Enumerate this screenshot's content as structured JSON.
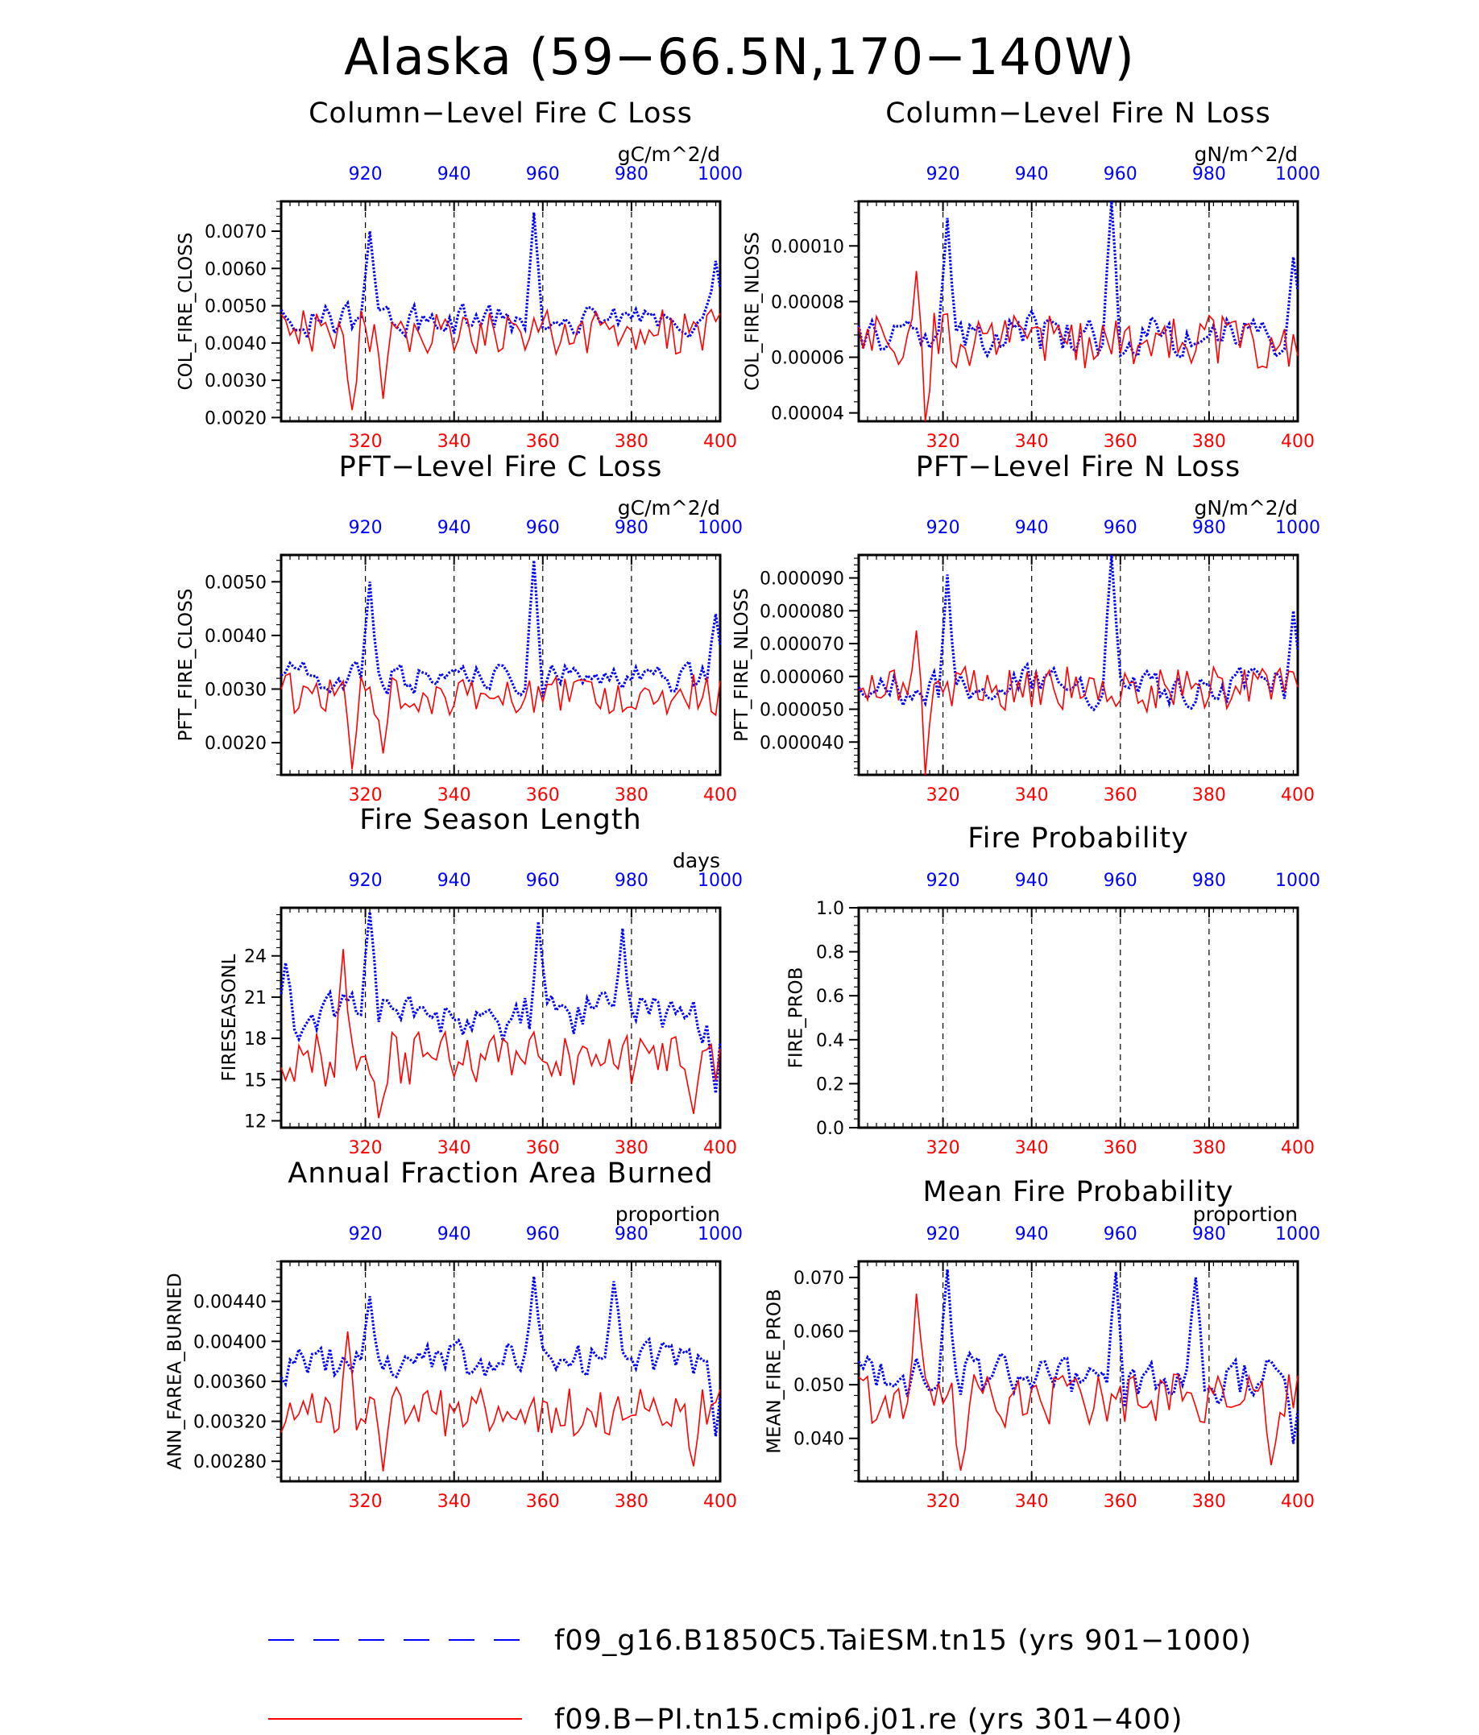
{
  "figure": {
    "title": "Alaska (59−66.5N,170−140W)"
  },
  "colors": {
    "series_a": "#0000ff",
    "series_b": "#ff0000",
    "axis": "#000000"
  },
  "legend": [
    {
      "label": "f09_g16.B1850C5.TaiESM.tn15 (yrs 901−1000)",
      "style": "dashed",
      "color": "#0000ff"
    },
    {
      "label": "f09.B−PI.tn15.cmip6.j01.re (yrs 301−400)",
      "style": "solid",
      "color": "#ff0000"
    }
  ],
  "chart_data": [
    {
      "type": "line",
      "title": "Column−Level Fire C Loss",
      "units": "gC/m^2/d",
      "ylabel": "COL_FIRE_CLOSS",
      "ylim": [
        0.0019,
        0.0078
      ],
      "yticks": [
        0.002,
        0.003,
        0.004,
        0.005,
        0.006,
        0.007
      ],
      "ytick_labels": [
        "0.0020",
        "0.0030",
        "0.0040",
        "0.0050",
        "0.0060",
        "0.0070"
      ],
      "xticks_bottom": [
        "320",
        "340",
        "360",
        "380",
        "400"
      ],
      "xticks_top": [
        "920",
        "940",
        "960",
        "980",
        "1000"
      ],
      "x_bottom_range": [
        301,
        400
      ],
      "x_top_range": [
        901,
        1000
      ],
      "grid": "dashed verticals at x ticks",
      "series": [
        {
          "style": "dotted",
          "color": "#0000ff",
          "base": 0.0046,
          "amp": 0.0006,
          "spikes": [
            [
              20,
              0.007
            ],
            [
              57,
              0.0075
            ],
            [
              98,
              0.0062
            ]
          ]
        },
        {
          "style": "solid",
          "color": "#ff0000",
          "base": 0.0043,
          "amp": 0.0006,
          "spikes": [
            [
              16,
              0.0022
            ],
            [
              23,
              0.0025
            ]
          ]
        }
      ]
    },
    {
      "type": "line",
      "title": "Column−Level Fire N Loss",
      "units": "gN/m^2/d",
      "ylabel": "COL_FIRE_NLOSS",
      "ylim": [
        3.7e-05,
        0.000116
      ],
      "yticks": [
        4e-05,
        6e-05,
        8e-05,
        0.0001
      ],
      "ytick_labels": [
        "0.00004",
        "0.00006",
        "0.00008",
        "0.00010"
      ],
      "xticks_bottom": [
        "320",
        "340",
        "360",
        "380",
        "400"
      ],
      "xticks_top": [
        "920",
        "940",
        "960",
        "980",
        "1000"
      ],
      "x_bottom_range": [
        301,
        400
      ],
      "x_top_range": [
        901,
        1000
      ],
      "grid": "dashed verticals at x ticks",
      "series": [
        {
          "style": "dotted",
          "color": "#0000ff",
          "base": 6.8e-05,
          "amp": 1.1e-05,
          "spikes": [
            [
              20,
              0.00011
            ],
            [
              57,
              0.000116
            ],
            [
              98,
              9.6e-05
            ]
          ]
        },
        {
          "style": "solid",
          "color": "#ff0000",
          "base": 6.6e-05,
          "amp": 1e-05,
          "spikes": [
            [
              15,
              3.7e-05
            ],
            [
              13,
              9.1e-05
            ]
          ]
        }
      ]
    },
    {
      "type": "line",
      "title": "PFT−Level Fire C Loss",
      "units": "gC/m^2/d",
      "ylabel": "PFT_FIRE_CLOSS",
      "ylim": [
        0.0014,
        0.0055
      ],
      "yticks": [
        0.002,
        0.003,
        0.004,
        0.005
      ],
      "ytick_labels": [
        "0.0020",
        "0.0030",
        "0.0040",
        "0.0050"
      ],
      "xticks_bottom": [
        "320",
        "340",
        "360",
        "380",
        "400"
      ],
      "xticks_top": [
        "920",
        "940",
        "960",
        "980",
        "1000"
      ],
      "x_bottom_range": [
        301,
        400
      ],
      "x_top_range": [
        901,
        1000
      ],
      "grid": "dashed verticals at x ticks",
      "series": [
        {
          "style": "dotted",
          "color": "#0000ff",
          "base": 0.0032,
          "amp": 0.0004,
          "spikes": [
            [
              20,
              0.005
            ],
            [
              57,
              0.0054
            ],
            [
              98,
              0.0044
            ]
          ]
        },
        {
          "style": "solid",
          "color": "#ff0000",
          "base": 0.0029,
          "amp": 0.0004,
          "spikes": [
            [
              16,
              0.0015
            ],
            [
              23,
              0.0018
            ]
          ]
        }
      ]
    },
    {
      "type": "line",
      "title": "PFT−Level Fire N Loss",
      "units": "gN/m^2/d",
      "ylabel": "PFT_FIRE_NLOSS",
      "ylim": [
        3e-05,
        9.7e-05
      ],
      "yticks": [
        4e-05,
        5e-05,
        6e-05,
        7e-05,
        8e-05,
        9e-05
      ],
      "ytick_labels": [
        "0.000040",
        "0.000050",
        "0.000060",
        "0.000070",
        "0.000080",
        "0.000090"
      ],
      "xticks_bottom": [
        "320",
        "340",
        "360",
        "380",
        "400"
      ],
      "xticks_top": [
        "920",
        "940",
        "960",
        "980",
        "1000"
      ],
      "x_bottom_range": [
        301,
        400
      ],
      "x_top_range": [
        901,
        1000
      ],
      "grid": "dashed verticals at x ticks",
      "series": [
        {
          "style": "dotted",
          "color": "#0000ff",
          "base": 5.7e-05,
          "amp": 8e-06,
          "spikes": [
            [
              20,
              9.1e-05
            ],
            [
              57,
              9.7e-05
            ],
            [
              98,
              8e-05
            ]
          ]
        },
        {
          "style": "solid",
          "color": "#ff0000",
          "base": 5.6e-05,
          "amp": 7e-06,
          "spikes": [
            [
              15,
              3e-05
            ],
            [
              13,
              7.4e-05
            ]
          ]
        }
      ]
    },
    {
      "type": "line",
      "title": "Fire Season Length",
      "units": "days",
      "ylabel": "FIRESEASONL",
      "ylim": [
        11.5,
        27.5
      ],
      "yticks": [
        12,
        15,
        18,
        21,
        24
      ],
      "ytick_labels": [
        "12",
        "15",
        "18",
        "21",
        "24"
      ],
      "xticks_bottom": [
        "320",
        "340",
        "360",
        "380",
        "400"
      ],
      "xticks_top": [
        "920",
        "940",
        "960",
        "980",
        "1000"
      ],
      "x_bottom_range": [
        301,
        400
      ],
      "x_top_range": [
        901,
        1000
      ],
      "grid": "dashed verticals at x ticks",
      "series": [
        {
          "style": "dotted",
          "color": "#0000ff",
          "base": 19.5,
          "amp": 2.5,
          "spikes": [
            [
              1,
              23.5
            ],
            [
              20,
              27.2
            ],
            [
              58,
              26.5
            ],
            [
              77,
              26.0
            ],
            [
              98,
              14.0
            ]
          ]
        },
        {
          "style": "solid",
          "color": "#ff0000",
          "base": 16.5,
          "amp": 2.0,
          "spikes": [
            [
              14,
              24.5
            ],
            [
              22,
              12.2
            ],
            [
              93,
              12.5
            ]
          ]
        }
      ]
    },
    {
      "type": "line",
      "title": "Fire Probability",
      "units": "",
      "ylabel": "FIRE_PROB",
      "ylim": [
        0.0,
        1.0
      ],
      "yticks": [
        0.0,
        0.2,
        0.4,
        0.6,
        0.8,
        1.0
      ],
      "ytick_labels": [
        "0.0",
        "0.2",
        "0.4",
        "0.6",
        "0.8",
        "1.0"
      ],
      "xticks_bottom": [
        "320",
        "340",
        "360",
        "380",
        "400"
      ],
      "xticks_top": [
        "920",
        "940",
        "960",
        "980",
        "1000"
      ],
      "x_bottom_range": [
        301,
        400
      ],
      "x_top_range": [
        901,
        1000
      ],
      "grid": "dashed verticals at x ticks",
      "series": []
    },
    {
      "type": "line",
      "title": "Annual Fraction Area Burned",
      "units": "proportion",
      "ylabel": "ANN_FAREA_BURNED",
      "ylim": [
        0.0026,
        0.0048
      ],
      "yticks": [
        0.0028,
        0.0032,
        0.0036,
        0.004,
        0.0044
      ],
      "ytick_labels": [
        "0.00280",
        "0.00320",
        "0.00360",
        "0.00400",
        "0.00440"
      ],
      "xticks_bottom": [
        "320",
        "340",
        "360",
        "380",
        "400"
      ],
      "xticks_top": [
        "920",
        "940",
        "960",
        "980",
        "1000"
      ],
      "x_bottom_range": [
        301,
        400
      ],
      "x_top_range": [
        901,
        1000
      ],
      "grid": "dashed verticals at x ticks",
      "series": [
        {
          "style": "dotted",
          "color": "#0000ff",
          "base": 0.0038,
          "amp": 0.00028,
          "spikes": [
            [
              20,
              0.00445
            ],
            [
              57,
              0.00465
            ],
            [
              75,
              0.0046
            ],
            [
              98,
              0.00305
            ]
          ]
        },
        {
          "style": "solid",
          "color": "#ff0000",
          "base": 0.0033,
          "amp": 0.00025,
          "spikes": [
            [
              15,
              0.0041
            ],
            [
              23,
              0.0027
            ],
            [
              93,
              0.00275
            ]
          ]
        }
      ]
    },
    {
      "type": "line",
      "title": "Mean Fire Probability",
      "units": "proportion",
      "ylabel": "MEAN_FIRE_PROB",
      "ylim": [
        0.032,
        0.073
      ],
      "yticks": [
        0.04,
        0.05,
        0.06,
        0.07
      ],
      "ytick_labels": [
        "0.040",
        "0.050",
        "0.060",
        "0.070"
      ],
      "xticks_bottom": [
        "320",
        "340",
        "360",
        "380",
        "400"
      ],
      "xticks_top": [
        "920",
        "940",
        "960",
        "980",
        "1000"
      ],
      "x_bottom_range": [
        301,
        400
      ],
      "x_top_range": [
        901,
        1000
      ],
      "grid": "dashed verticals at x ticks",
      "series": [
        {
          "style": "dotted",
          "color": "#0000ff",
          "base": 0.051,
          "amp": 0.006,
          "spikes": [
            [
              20,
              0.0715
            ],
            [
              58,
              0.071
            ],
            [
              76,
              0.07
            ],
            [
              98,
              0.039
            ]
          ]
        },
        {
          "style": "solid",
          "color": "#ff0000",
          "base": 0.047,
          "amp": 0.005,
          "spikes": [
            [
              13,
              0.067
            ],
            [
              23,
              0.034
            ],
            [
              93,
              0.035
            ]
          ]
        }
      ]
    }
  ]
}
